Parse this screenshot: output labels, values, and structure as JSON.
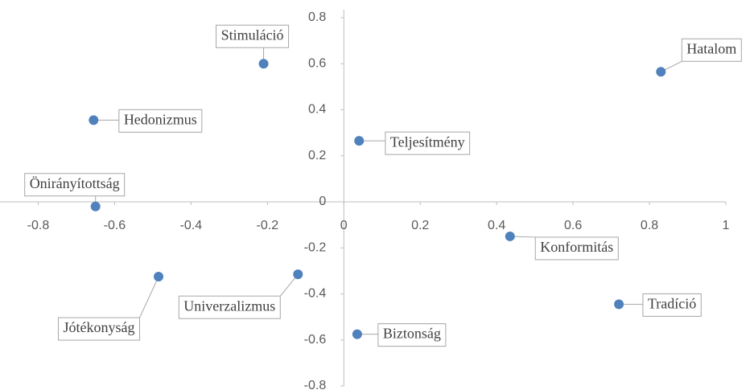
{
  "chart_data": {
    "type": "scatter",
    "series": [
      {
        "color": "#4f81bd",
        "labels": [
          "Hatalom",
          "Stimuláció",
          "Hedonizmus",
          "Teljesítmény",
          "Önirányítottság",
          "Konformitás",
          "Jótékonyság",
          "Univerzalizmus",
          "Tradíció",
          "Biztonság"
        ],
        "x": [
          0.83,
          -0.21,
          -0.655,
          0.04,
          -0.65,
          0.435,
          -0.485,
          -0.12,
          0.72,
          0.035
        ],
        "values": [
          0.565,
          0.6,
          0.355,
          0.265,
          -0.02,
          -0.15,
          -0.325,
          -0.315,
          -0.445,
          -0.575
        ]
      }
    ],
    "xlim": [
      -0.9,
      1
    ],
    "ylim": [
      -0.8,
      0.8
    ],
    "xticks": [
      -0.8,
      -0.6,
      -0.4,
      -0.2,
      0,
      0.2,
      0.4,
      0.6,
      0.8,
      1
    ],
    "yticks": [
      -0.8,
      -0.6,
      -0.4,
      -0.2,
      0,
      0.2,
      0.4,
      0.6,
      0.8
    ]
  }
}
